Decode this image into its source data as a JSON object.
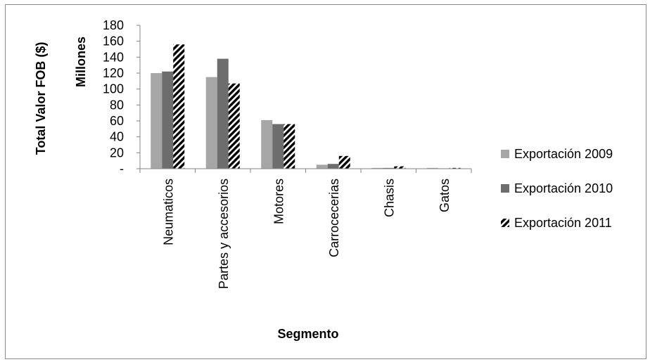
{
  "chart_data": {
    "type": "bar",
    "categories": [
      "Neumaticos",
      "Partes y accesorios",
      "Motores",
      "Carrocecerias",
      "Chasis",
      "Gatos"
    ],
    "series": [
      {
        "name": "Exportación 2009",
        "values": [
          120,
          115,
          61,
          5,
          1,
          1
        ],
        "color": "#a6a6a6",
        "pattern": "solid"
      },
      {
        "name": "Exportación 2010",
        "values": [
          122,
          138,
          56,
          6,
          1,
          0.5
        ],
        "color": "#6d6d6d",
        "pattern": "solid"
      },
      {
        "name": "Exportación 2011",
        "values": [
          156,
          107,
          56,
          16,
          3,
          1
        ],
        "color": "#000000",
        "pattern": "diagonal-stripes"
      }
    ],
    "ylim": [
      0,
      180
    ],
    "yticks": [
      0,
      20,
      40,
      60,
      80,
      100,
      120,
      140,
      160,
      180
    ],
    "ytick_labels": [
      "-",
      "20",
      "40",
      "60",
      "80",
      "100",
      "120",
      "140",
      "160",
      "180"
    ],
    "ylabel": "Total Valor FOB ($)",
    "yunit_label": "Millones",
    "xlabel": "Segmento",
    "legend_position": "right",
    "grid": false
  }
}
